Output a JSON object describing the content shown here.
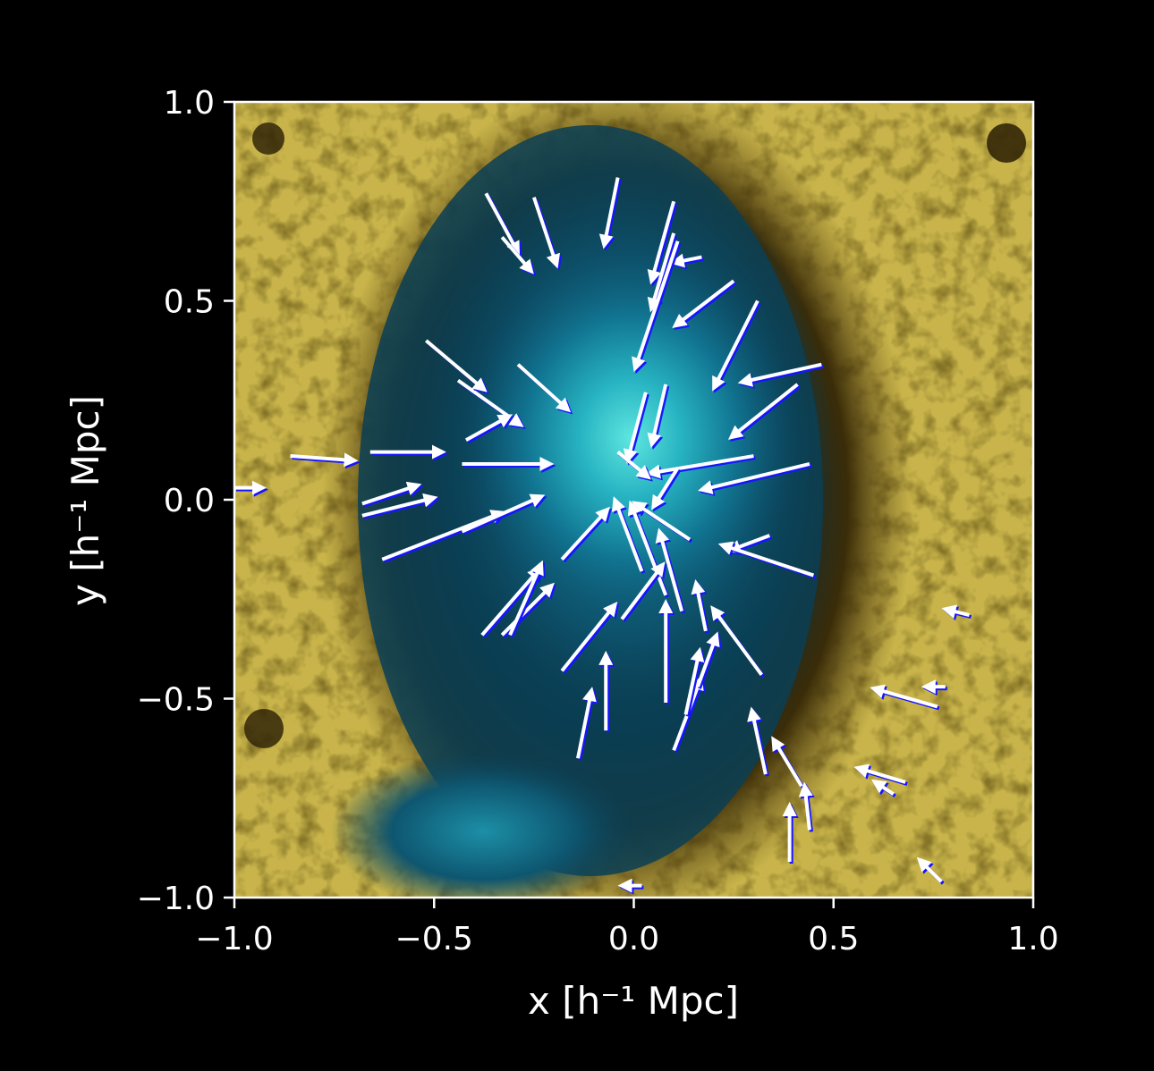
{
  "chart_data": {
    "type": "quiver",
    "background": "density map (cyan = high density, gold/brown = low density)",
    "xlabel": "x [h⁻¹ Mpc]",
    "ylabel": "y [h⁻¹ Mpc]",
    "xlim": [
      -1.0,
      1.0
    ],
    "ylim": [
      -1.0,
      1.0
    ],
    "xticks": [
      "−1.0",
      "−0.5",
      "0.0",
      "0.5",
      "1.0"
    ],
    "yticks": [
      "1.0",
      "0.5",
      "0.0",
      "−0.5",
      "−1.0"
    ],
    "grid": false,
    "colors": {
      "background": "#000000",
      "arrow": "#ffffff",
      "arrow_shadow": "#1515ff",
      "density_high": "#3ad8d8",
      "density_mid": "#0c4c66",
      "density_low": "#c8b44a",
      "density_dark": "#3a2a05"
    },
    "arrows": [
      {
        "x": -0.44,
        "y": 0.3,
        "dx": 0.14,
        "dy": -0.1
      },
      {
        "x": -0.52,
        "y": 0.4,
        "dx": 0.13,
        "dy": -0.11
      },
      {
        "x": -0.37,
        "y": 0.77,
        "dx": 0.07,
        "dy": -0.13
      },
      {
        "x": -0.33,
        "y": 0.66,
        "dx": 0.06,
        "dy": -0.07
      },
      {
        "x": -0.25,
        "y": 0.76,
        "dx": 0.05,
        "dy": -0.15
      },
      {
        "x": -0.04,
        "y": 0.81,
        "dx": -0.03,
        "dy": -0.15
      },
      {
        "x": 0.1,
        "y": 0.75,
        "dx": -0.05,
        "dy": -0.18
      },
      {
        "x": 0.1,
        "y": 0.67,
        "dx": -0.05,
        "dy": -0.17
      },
      {
        "x": 0.17,
        "y": 0.61,
        "dx": -0.05,
        "dy": -0.01
      },
      {
        "x": 0.25,
        "y": 0.55,
        "dx": -0.13,
        "dy": -0.1
      },
      {
        "x": 0.11,
        "y": 0.65,
        "dx": -0.1,
        "dy": -0.3
      },
      {
        "x": 0.31,
        "y": 0.5,
        "dx": -0.1,
        "dy": -0.2
      },
      {
        "x": 0.47,
        "y": 0.34,
        "dx": -0.18,
        "dy": -0.04
      },
      {
        "x": 0.41,
        "y": 0.29,
        "dx": -0.15,
        "dy": -0.12
      },
      {
        "x": 0.08,
        "y": 0.29,
        "dx": -0.03,
        "dy": -0.13
      },
      {
        "x": -0.29,
        "y": 0.34,
        "dx": 0.11,
        "dy": -0.1
      },
      {
        "x": -0.42,
        "y": 0.15,
        "dx": 0.09,
        "dy": 0.05
      },
      {
        "x": -0.66,
        "y": 0.12,
        "dx": 0.16,
        "dy": 0.0
      },
      {
        "x": -0.86,
        "y": 0.11,
        "dx": 0.14,
        "dy": -0.01
      },
      {
        "x": -1.0,
        "y": 0.03,
        "dx": 0.05,
        "dy": 0.0
      },
      {
        "x": -0.43,
        "y": 0.09,
        "dx": 0.2,
        "dy": 0.0
      },
      {
        "x": -0.68,
        "y": -0.01,
        "dx": 0.12,
        "dy": 0.04
      },
      {
        "x": -0.68,
        "y": -0.04,
        "dx": 0.16,
        "dy": 0.04
      },
      {
        "x": -0.63,
        "y": -0.15,
        "dx": 0.28,
        "dy": 0.11
      },
      {
        "x": -0.43,
        "y": -0.08,
        "dx": 0.18,
        "dy": 0.08
      },
      {
        "x": -0.18,
        "y": -0.15,
        "dx": 0.1,
        "dy": 0.11
      },
      {
        "x": 0.03,
        "y": 0.27,
        "dx": -0.04,
        "dy": -0.15
      },
      {
        "x": 0.3,
        "y": 0.11,
        "dx": -0.24,
        "dy": -0.04
      },
      {
        "x": 0.44,
        "y": 0.09,
        "dx": -0.25,
        "dy": -0.06
      },
      {
        "x": 0.11,
        "y": 0.08,
        "dx": -0.05,
        "dy": -0.08
      },
      {
        "x": -0.04,
        "y": 0.12,
        "dx": 0.06,
        "dy": -0.05
      },
      {
        "x": 0.34,
        "y": -0.09,
        "dx": -0.08,
        "dy": -0.03
      },
      {
        "x": 0.45,
        "y": -0.19,
        "dx": -0.21,
        "dy": 0.07
      },
      {
        "x": 0.14,
        "y": -0.1,
        "dx": -0.12,
        "dy": 0.08
      },
      {
        "x": 0.02,
        "y": -0.18,
        "dx": -0.06,
        "dy": 0.16
      },
      {
        "x": 0.08,
        "y": -0.24,
        "dx": -0.08,
        "dy": 0.21
      },
      {
        "x": 0.12,
        "y": -0.28,
        "dx": -0.05,
        "dy": 0.18
      },
      {
        "x": -0.03,
        "y": -0.3,
        "dx": 0.09,
        "dy": 0.12
      },
      {
        "x": -0.18,
        "y": -0.43,
        "dx": 0.12,
        "dy": 0.15
      },
      {
        "x": -0.38,
        "y": -0.34,
        "dx": 0.13,
        "dy": 0.15
      },
      {
        "x": -0.33,
        "y": -0.34,
        "dx": 0.11,
        "dy": 0.11
      },
      {
        "x": -0.31,
        "y": -0.34,
        "dx": 0.07,
        "dy": 0.16
      },
      {
        "x": -0.14,
        "y": -0.65,
        "dx": 0.03,
        "dy": 0.15
      },
      {
        "x": -0.07,
        "y": -0.58,
        "dx": 0.0,
        "dy": 0.17
      },
      {
        "x": 0.08,
        "y": -0.51,
        "dx": 0.0,
        "dy": 0.23
      },
      {
        "x": 0.1,
        "y": -0.63,
        "dx": 0.06,
        "dy": 0.16
      },
      {
        "x": 0.13,
        "y": -0.54,
        "dx": 0.03,
        "dy": 0.14
      },
      {
        "x": 0.16,
        "y": -0.47,
        "dx": 0.04,
        "dy": 0.11
      },
      {
        "x": 0.32,
        "y": -0.44,
        "dx": -0.11,
        "dy": 0.15
      },
      {
        "x": 0.18,
        "y": -0.33,
        "dx": -0.02,
        "dy": 0.1
      },
      {
        "x": 0.33,
        "y": -0.69,
        "dx": -0.03,
        "dy": 0.14
      },
      {
        "x": 0.42,
        "y": -0.72,
        "dx": -0.06,
        "dy": 0.1
      },
      {
        "x": 0.39,
        "y": -0.91,
        "dx": 0.0,
        "dy": 0.12
      },
      {
        "x": 0.44,
        "y": -0.83,
        "dx": -0.01,
        "dy": 0.09
      },
      {
        "x": 0.76,
        "y": -0.52,
        "dx": -0.14,
        "dy": 0.04
      },
      {
        "x": 0.68,
        "y": -0.71,
        "dx": -0.1,
        "dy": 0.03
      },
      {
        "x": 0.65,
        "y": -0.74,
        "dx": -0.03,
        "dy": 0.02
      },
      {
        "x": 0.77,
        "y": -0.96,
        "dx": -0.04,
        "dy": 0.04
      },
      {
        "x": 0.84,
        "y": -0.29,
        "dx": -0.04,
        "dy": 0.01
      },
      {
        "x": 0.78,
        "y": -0.47,
        "dx": -0.03,
        "dy": 0.0
      },
      {
        "x": 0.02,
        "y": -0.97,
        "dx": -0.03,
        "dy": 0.0
      }
    ]
  }
}
